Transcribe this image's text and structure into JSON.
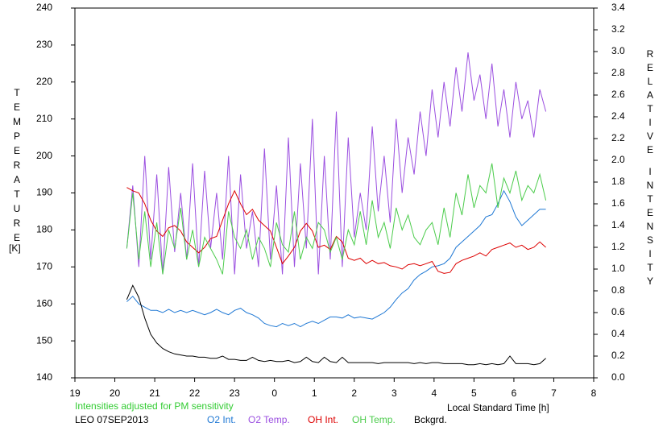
{
  "chart_data": {
    "type": "line",
    "x": [
      20.3,
      20.45,
      20.6,
      20.75,
      20.9,
      21.05,
      21.2,
      21.35,
      21.5,
      21.65,
      21.8,
      21.95,
      22.1,
      22.25,
      22.4,
      22.55,
      22.7,
      22.85,
      23,
      23.15,
      23.3,
      23.45,
      23.6,
      23.75,
      23.9,
      24.05,
      24.2,
      24.35,
      24.5,
      24.65,
      24.8,
      24.95,
      25.1,
      25.25,
      25.4,
      25.55,
      25.7,
      25.85,
      26,
      26.15,
      26.3,
      26.45,
      26.6,
      26.75,
      26.9,
      27.05,
      27.2,
      27.35,
      27.5,
      27.65,
      27.8,
      27.95,
      28.1,
      28.25,
      28.4,
      28.55,
      28.7,
      28.85,
      29,
      29.15,
      29.3,
      29.45,
      29.6,
      29.75,
      29.9,
      30.05,
      30.2,
      30.35,
      30.5,
      30.65,
      30.8
    ],
    "series": [
      {
        "name": "O2 Int.",
        "color": "#1f78d4",
        "axis": "y2",
        "values": [
          0.7,
          0.75,
          0.68,
          0.65,
          0.62,
          0.62,
          0.6,
          0.63,
          0.6,
          0.62,
          0.6,
          0.62,
          0.6,
          0.58,
          0.6,
          0.63,
          0.6,
          0.58,
          0.62,
          0.64,
          0.6,
          0.58,
          0.55,
          0.5,
          0.48,
          0.47,
          0.5,
          0.48,
          0.5,
          0.47,
          0.5,
          0.52,
          0.5,
          0.53,
          0.56,
          0.56,
          0.55,
          0.58,
          0.55,
          0.56,
          0.55,
          0.54,
          0.57,
          0.6,
          0.65,
          0.72,
          0.78,
          0.82,
          0.9,
          0.95,
          0.98,
          1.02,
          1.03,
          1.05,
          1.1,
          1.2,
          1.25,
          1.3,
          1.35,
          1.4,
          1.48,
          1.5,
          1.6,
          1.72,
          1.62,
          1.48,
          1.4,
          1.45,
          1.5,
          1.55,
          1.55
        ]
      },
      {
        "name": "O2 Temp.",
        "color": "#9b4fe0",
        "values": [
          175,
          192,
          170,
          200,
          172,
          195,
          168,
          197,
          174,
          190,
          172,
          198,
          170,
          196,
          175,
          190,
          172,
          200,
          168,
          195,
          175,
          185,
          170,
          202,
          172,
          192,
          168,
          205,
          170,
          198,
          175,
          210,
          168,
          200,
          172,
          212,
          170,
          205,
          178,
          190,
          180,
          208,
          185,
          200,
          182,
          210,
          190,
          205,
          195,
          212,
          200,
          218,
          205,
          220,
          208,
          224,
          212,
          228,
          215,
          222,
          210,
          225,
          208,
          218,
          205,
          220,
          210,
          215,
          205,
          218,
          212
        ]
      },
      {
        "name": "OH Int.",
        "color": "#dd0000",
        "axis": "y2",
        "values": [
          1.75,
          1.72,
          1.7,
          1.6,
          1.45,
          1.35,
          1.3,
          1.38,
          1.4,
          1.35,
          1.25,
          1.2,
          1.15,
          1.2,
          1.28,
          1.3,
          1.45,
          1.6,
          1.72,
          1.6,
          1.5,
          1.55,
          1.45,
          1.4,
          1.35,
          1.2,
          1.05,
          1.12,
          1.2,
          1.35,
          1.42,
          1.35,
          1.2,
          1.22,
          1.18,
          1.3,
          1.25,
          1.1,
          1.08,
          1.1,
          1.05,
          1.08,
          1.05,
          1.06,
          1.03,
          1.02,
          1.0,
          1.04,
          1.05,
          1.03,
          1.05,
          1.07,
          0.98,
          0.96,
          0.97,
          1.05,
          1.08,
          1.1,
          1.12,
          1.15,
          1.12,
          1.18,
          1.2,
          1.22,
          1.24,
          1.2,
          1.22,
          1.18,
          1.2,
          1.25,
          1.2
        ]
      },
      {
        "name": "OH Temp.",
        "color": "#4ccc4c",
        "values": [
          175,
          190,
          172,
          185,
          170,
          182,
          168,
          180,
          175,
          186,
          172,
          180,
          170,
          178,
          175,
          172,
          168,
          185,
          178,
          175,
          180,
          172,
          178,
          175,
          170,
          182,
          176,
          174,
          185,
          172,
          178,
          175,
          182,
          180,
          174,
          178,
          172,
          180,
          176,
          185,
          176,
          188,
          178,
          182,
          175,
          186,
          180,
          184,
          178,
          176,
          180,
          182,
          176,
          186,
          178,
          190,
          184,
          195,
          186,
          192,
          190,
          198,
          186,
          194,
          190,
          196,
          188,
          192,
          190,
          195,
          188
        ]
      },
      {
        "name": "Bckgrd.",
        "color": "#000000",
        "axis": "y2",
        "values": [
          0.72,
          0.85,
          0.74,
          0.55,
          0.4,
          0.32,
          0.27,
          0.24,
          0.22,
          0.21,
          0.2,
          0.2,
          0.19,
          0.19,
          0.18,
          0.18,
          0.2,
          0.17,
          0.17,
          0.16,
          0.16,
          0.19,
          0.16,
          0.15,
          0.16,
          0.15,
          0.15,
          0.16,
          0.14,
          0.15,
          0.19,
          0.15,
          0.14,
          0.19,
          0.15,
          0.14,
          0.19,
          0.14,
          0.14,
          0.14,
          0.14,
          0.14,
          0.13,
          0.14,
          0.14,
          0.14,
          0.14,
          0.14,
          0.13,
          0.14,
          0.13,
          0.14,
          0.14,
          0.13,
          0.13,
          0.13,
          0.13,
          0.12,
          0.12,
          0.13,
          0.12,
          0.13,
          0.12,
          0.13,
          0.2,
          0.13,
          0.13,
          0.13,
          0.12,
          0.13,
          0.18
        ]
      }
    ],
    "xlim": [
      19,
      32
    ],
    "xticks": [
      19,
      20,
      21,
      22,
      23,
      {
        "value": 24,
        "label": "0"
      },
      {
        "value": 25,
        "label": "1"
      },
      {
        "value": 26,
        "label": "2"
      },
      {
        "value": 27,
        "label": "3"
      },
      {
        "value": 28,
        "label": "4"
      },
      {
        "value": 29,
        "label": "5"
      },
      {
        "value": 30,
        "label": "6"
      },
      {
        "value": 31,
        "label": "7"
      },
      {
        "value": 32,
        "label": "8"
      }
    ],
    "ylim": [
      140,
      240
    ],
    "yticks": [
      140,
      150,
      160,
      170,
      180,
      190,
      200,
      210,
      220,
      230,
      240
    ],
    "y2lim": [
      0,
      3.4
    ],
    "y2ticks": [
      {
        "value": 0,
        "label": "0.0"
      },
      0.2,
      0.4,
      0.6,
      0.8,
      {
        "value": 1,
        "label": "1.0"
      },
      1.2,
      1.4,
      1.6,
      1.8,
      {
        "value": 2,
        "label": "2.0"
      },
      2.2,
      2.4,
      2.6,
      2.8,
      {
        "value": 3,
        "label": "3.0"
      },
      3.2,
      3.4
    ],
    "ylabel": "TEMPERATURE",
    "ylabel_unit": "[K]",
    "y2label": [
      "RELATIVE",
      "INTENSITY"
    ],
    "xlabel": "Local Standard Time [h]",
    "note": "Intensities adjusted for PM sensitivity",
    "note_color": "#33cc33",
    "footer": "LEO 07SEP2013",
    "grid": false
  }
}
